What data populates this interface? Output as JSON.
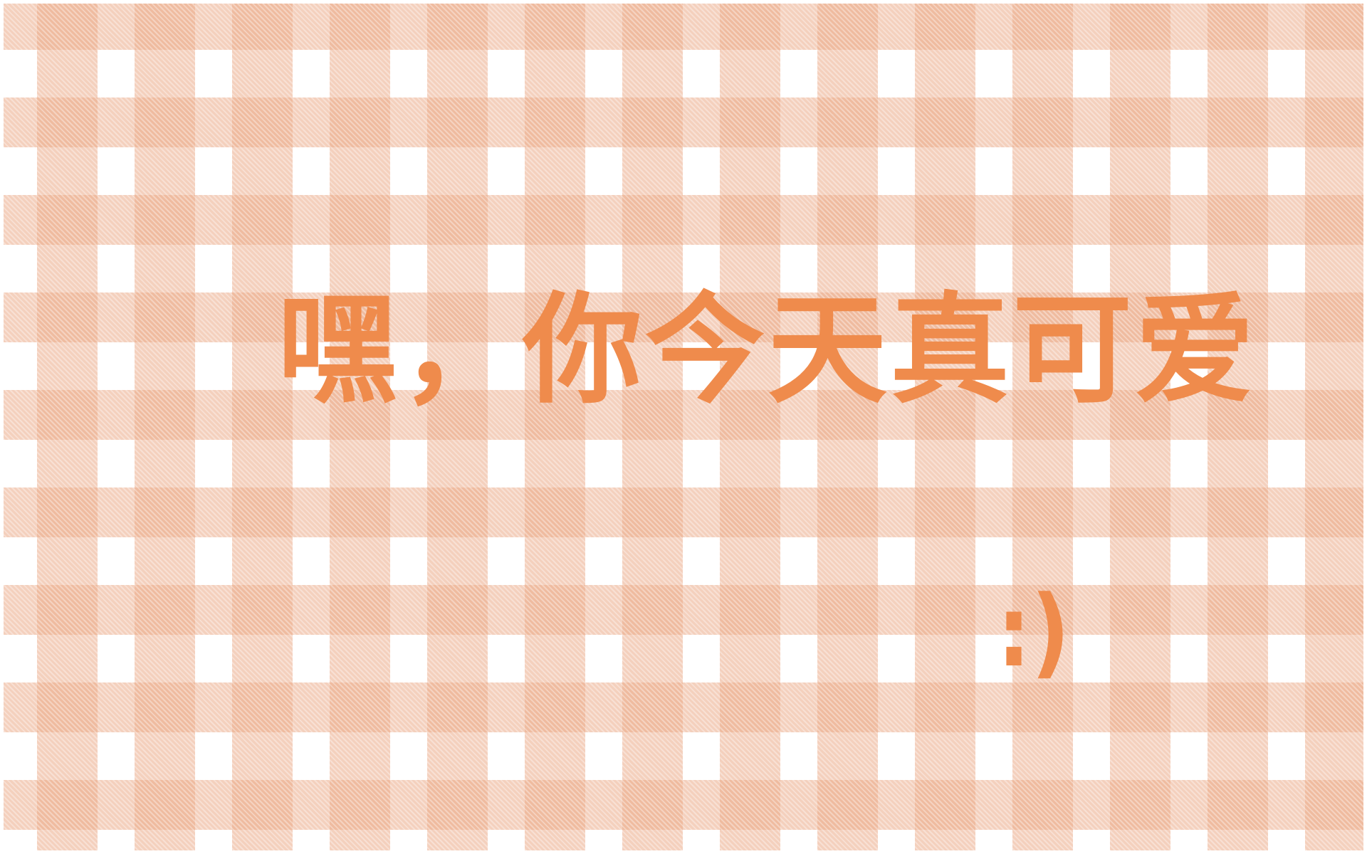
{
  "wallpaper": {
    "pattern": "gingham",
    "colors": {
      "base": "#ffffff",
      "check": "#f2c4a8",
      "text": "#ef8b4c"
    },
    "message": "嘿，你今天真可爱",
    "emoticon": ":)"
  }
}
